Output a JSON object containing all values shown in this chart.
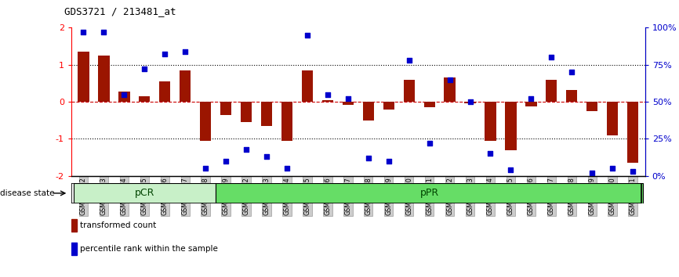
{
  "title": "GDS3721 / 213481_at",
  "samples": [
    "GSM559062",
    "GSM559063",
    "GSM559064",
    "GSM559065",
    "GSM559066",
    "GSM559067",
    "GSM559068",
    "GSM559069",
    "GSM559042",
    "GSM559043",
    "GSM559044",
    "GSM559045",
    "GSM559046",
    "GSM559047",
    "GSM559048",
    "GSM559049",
    "GSM559050",
    "GSM559051",
    "GSM559052",
    "GSM559053",
    "GSM559054",
    "GSM559055",
    "GSM559056",
    "GSM559057",
    "GSM559058",
    "GSM559059",
    "GSM559060",
    "GSM559061"
  ],
  "transformed_count": [
    1.35,
    1.25,
    0.28,
    0.15,
    0.55,
    0.85,
    -1.05,
    -0.35,
    -0.55,
    -0.65,
    -1.05,
    0.85,
    0.05,
    -0.08,
    -0.5,
    -0.2,
    0.6,
    -0.15,
    0.65,
    -0.05,
    -1.05,
    -1.3,
    -0.12,
    0.6,
    0.32,
    -0.25,
    -0.9,
    -1.65
  ],
  "percentile_rank": [
    97,
    97,
    55,
    72,
    82,
    84,
    5,
    10,
    18,
    13,
    5,
    95,
    55,
    52,
    12,
    10,
    78,
    22,
    65,
    50,
    15,
    4,
    52,
    80,
    70,
    2,
    5,
    3
  ],
  "groups": [
    {
      "label": "pCR",
      "start": 0,
      "end": 7,
      "color": "#c8f0c8"
    },
    {
      "label": "pPR",
      "start": 7,
      "end": 28,
      "color": "#66dd66"
    }
  ],
  "bar_color": "#9B1500",
  "dot_color": "#0000CC",
  "left_ylim": [
    -2,
    2
  ],
  "left_yticks": [
    -2,
    -1,
    0,
    1,
    2
  ],
  "right_yticks_pct": [
    0,
    25,
    50,
    75,
    100
  ],
  "right_yticklabels": [
    "0%",
    "25%",
    "50%",
    "75%",
    "100%"
  ],
  "hline_color": "#CC0000",
  "dotted_color": "black"
}
